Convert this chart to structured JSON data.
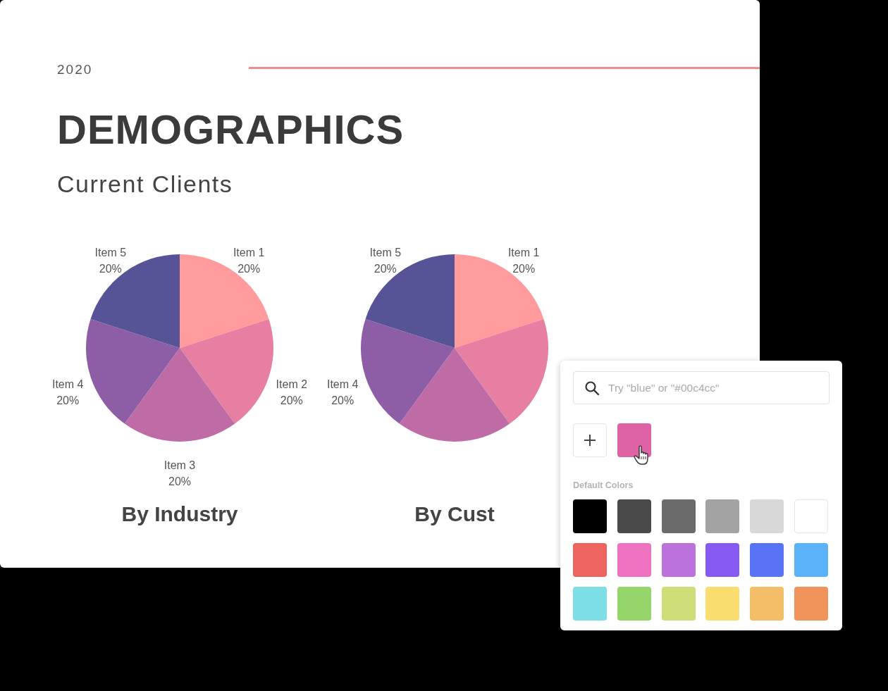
{
  "chart_data": [
    {
      "type": "other",
      "title": "DEMOGRAPHICS",
      "subtitle": "Current Clients",
      "annotations": [
        "2020"
      ]
    },
    {
      "type": "pie",
      "title": "By Industry",
      "categories": [
        "Item 1",
        "Item 2",
        "Item 3",
        "Item 4",
        "Item 5"
      ],
      "values": [
        20,
        20,
        20,
        20,
        20
      ],
      "value_labels": [
        "20%",
        "20%",
        "20%",
        "20%",
        "20%"
      ],
      "colors": [
        "#ff9a9d",
        "#e67fa2",
        "#bf6ca6",
        "#8d5ea5",
        "#575397"
      ]
    },
    {
      "type": "pie",
      "title": "By Cust",
      "categories": [
        "Item 1",
        null,
        null,
        "Item 4",
        "Item 5"
      ],
      "values": [
        20,
        20,
        20,
        20,
        20
      ],
      "value_labels": [
        "20%",
        null,
        null,
        "20%",
        "20%"
      ],
      "colors": [
        "#ff9a9d",
        "#e67fa2",
        "#bf6ca6",
        "#8d5ea5",
        "#575397"
      ]
    },
    {
      "type": "other",
      "annotations": [
        "Try \"blue\" or \"#00c4cc\"",
        "Default Colors"
      ]
    }
  ]
}
